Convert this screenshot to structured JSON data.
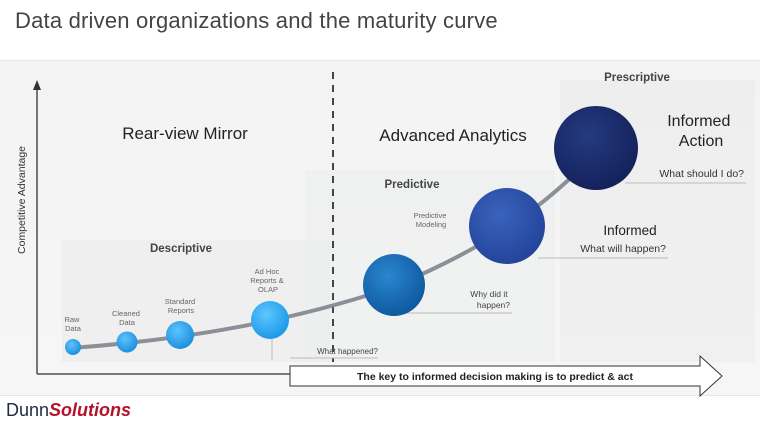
{
  "title": "Data driven organizations and the maturity curve",
  "axis": {
    "y_label": "Competitive Advantage"
  },
  "sections": {
    "left_heading": "Rear-view Mirror",
    "right_heading": "Advanced Analytics"
  },
  "stages": {
    "descriptive": "Descriptive",
    "predictive": "Predictive",
    "prescriptive": "Prescriptive"
  },
  "nodes": {
    "raw": [
      "Raw",
      "Data"
    ],
    "cleaned": [
      "Cleaned",
      "Data"
    ],
    "standard": [
      "Standard",
      "Reports"
    ],
    "adhoc": [
      "Ad Hoc",
      "Reports &",
      "OLAP"
    ],
    "predictive_modeling": [
      "Predictive",
      "Modeling"
    ]
  },
  "callouts": {
    "what_happened": "What happened?",
    "why_did_it_happen": [
      "Why did it",
      "happen?"
    ],
    "informed": "Informed",
    "what_will_happen": "What will happen?",
    "informed_action": [
      "Informed",
      "Action"
    ],
    "what_should_i_do": "What should I do?"
  },
  "arrow_text": "The key to informed decision making is to predict & act",
  "logo": {
    "part1": "Dunn",
    "part2": "Solutions"
  },
  "colors": {
    "small_node": "#1e9be8",
    "adhoc_node": "#29aaf4",
    "predictive_node": "#1565b0",
    "informed_node": "#2b4fa5",
    "action_node": "#1a2a6a",
    "curve": "#8a9096",
    "logo_accent": "#b3122a"
  }
}
